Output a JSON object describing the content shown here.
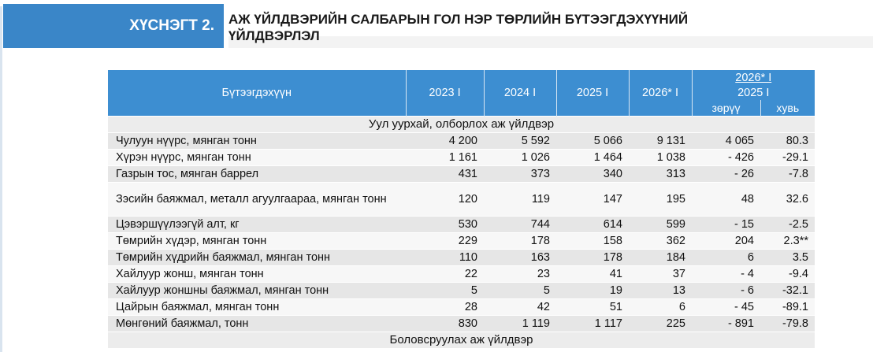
{
  "header": {
    "tag_label": "ХҮСНЭГТ 2.",
    "title_line1": "АЖ ҮЙЛДВЭРИЙН САЛБАРЫН ГОЛ НЭР ТӨРЛИЙН БҮТЭЭГДЭХҮҮНИЙ",
    "title_line2": "ҮЙЛДВЭРЛЭЛ"
  },
  "table": {
    "col_product": "Бүтээгдэхүүн",
    "col_2023": "2023 I",
    "col_2024": "2024 I",
    "col_2025": "2025 I",
    "col_2026": "2026* I",
    "ratio_top": "2026* I",
    "ratio_bottom": "2025  I",
    "col_diff": "зөрүү",
    "col_pct": "хувь",
    "sections": [
      {
        "title": "Уул уурхай, олборлох аж үйлдвэр",
        "rows": [
          {
            "name": "Чулуун нүүрс, мянган тонн",
            "v2023": "4 200",
            "v2024": "5 592",
            "v2025": "5 066",
            "v2026": "9 131",
            "diff": "4 065",
            "pct": "80.3"
          },
          {
            "name": "Хүрэн нүүрс, мянган тонн",
            "v2023": "1 161",
            "v2024": "1 026",
            "v2025": "1 464",
            "v2026": "1 038",
            "diff": "- 426",
            "pct": "-29.1"
          },
          {
            "name": "Газрын тос, мянган баррел",
            "v2023": "431",
            "v2024": "373",
            "v2025": "340",
            "v2026": "313",
            "diff": "- 26",
            "pct": "-7.8"
          },
          {
            "name": "Зэсийн баяжмал, металл агуулгаараа, мянган тонн",
            "v2023": "120",
            "v2024": "119",
            "v2025": "147",
            "v2026": "195",
            "diff": "48",
            "pct": "32.6"
          },
          {
            "name": "Цэвэршүүлээгүй алт, кг",
            "v2023": "530",
            "v2024": "744",
            "v2025": "614",
            "v2026": "599",
            "diff": "- 15",
            "pct": "-2.5"
          },
          {
            "name": "Төмрийн хүдэр, мянган тонн",
            "v2023": "229",
            "v2024": "178",
            "v2025": "158",
            "v2026": "362",
            "diff": "204",
            "pct": "2.3**"
          },
          {
            "name": "Төмрийн хүдрийн баяжмал, мянган тонн",
            "v2023": "110",
            "v2024": "163",
            "v2025": "178",
            "v2026": "184",
            "diff": "6",
            "pct": "3.5"
          },
          {
            "name": "Хайлуур жонш, мянган тонн",
            "v2023": "22",
            "v2024": "23",
            "v2025": "41",
            "v2026": "37",
            "diff": "- 4",
            "pct": "-9.4"
          },
          {
            "name": "Хайлуур жоншны баяжмал, мянган тонн",
            "v2023": "5",
            "v2024": "5",
            "v2025": "19",
            "v2026": "13",
            "diff": "- 6",
            "pct": "-32.1"
          },
          {
            "name": "Цайрын баяжмал, мянган тонн",
            "v2023": "28",
            "v2024": "42",
            "v2025": "51",
            "v2026": "6",
            "diff": "- 45",
            "pct": "-89.1"
          },
          {
            "name": "Мөнгөний баяжмал, тонн",
            "v2023": "830",
            "v2024": "1 119",
            "v2025": "1 117",
            "v2026": "225",
            "diff": "- 891",
            "pct": "-79.8"
          }
        ]
      },
      {
        "title": "Боловсруулах аж үйлдвэр",
        "rows": []
      }
    ]
  }
}
